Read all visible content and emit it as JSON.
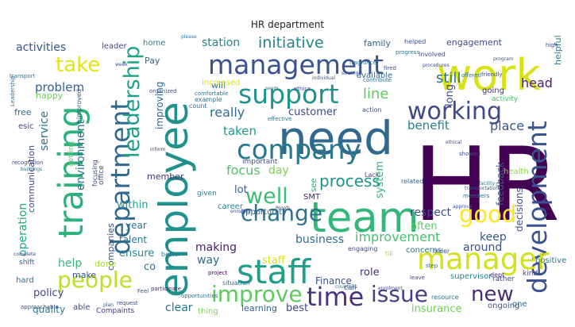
{
  "title": "HR department",
  "words": [
    {
      "text": "HR",
      "color": "#440154"
    },
    {
      "text": "employee",
      "color": "#21918c"
    },
    {
      "text": "need",
      "color": "#31688e"
    },
    {
      "text": "work",
      "color": "#d8e219"
    },
    {
      "text": "team",
      "color": "#35b779"
    },
    {
      "text": "management",
      "color": "#3b528b"
    },
    {
      "text": "company",
      "color": "#2a788e"
    },
    {
      "text": "staff",
      "color": "#1f9e89"
    },
    {
      "text": "support",
      "color": "#21918c"
    },
    {
      "text": "working",
      "color": "#3e4a89"
    },
    {
      "text": "training",
      "color": "#2db27d"
    },
    {
      "text": "department",
      "color": "#31688e"
    },
    {
      "text": "development",
      "color": "#3b528b"
    },
    {
      "text": "manager",
      "color": "#d2e21b"
    },
    {
      "text": "time",
      "color": "#46327e"
    },
    {
      "text": "people",
      "color": "#bddf26"
    },
    {
      "text": "issue",
      "color": "#433e85"
    },
    {
      "text": "improve",
      "color": "#5ec962"
    },
    {
      "text": "change",
      "color": "#2c728e"
    },
    {
      "text": "well",
      "color": "#3dbc74"
    },
    {
      "text": "good",
      "color": "#fde725"
    },
    {
      "text": "new",
      "color": "#472c7a"
    },
    {
      "text": "take",
      "color": "#e2e418"
    },
    {
      "text": "leadership",
      "color": "#1fa187"
    },
    {
      "text": "process",
      "color": "#20928c"
    },
    {
      "text": "initiative",
      "color": "#26828e"
    },
    {
      "text": "line",
      "color": "#5ec962"
    },
    {
      "text": "still",
      "color": "#2d718e"
    },
    {
      "text": "head",
      "color": "#482173"
    },
    {
      "text": "benefit",
      "color": "#277f8e"
    },
    {
      "text": "place",
      "color": "#38598c"
    },
    {
      "text": "really",
      "color": "#2f6c8e"
    },
    {
      "text": "customer",
      "color": "#3e4989"
    },
    {
      "text": "activities",
      "color": "#39568c"
    },
    {
      "text": "station",
      "color": "#25848e"
    },
    {
      "text": "environment",
      "color": "#2d708e"
    },
    {
      "text": "problem",
      "color": "#365c8d"
    },
    {
      "text": "improving",
      "color": "#33638d"
    },
    {
      "text": "service",
      "color": "#2a768e"
    },
    {
      "text": "operation",
      "color": "#22a785"
    },
    {
      "text": "communication",
      "color": "#3f4788"
    },
    {
      "text": "policy",
      "color": "#404688"
    },
    {
      "text": "quality",
      "color": "#297b8e"
    },
    {
      "text": "help",
      "color": "#35b779"
    },
    {
      "text": "focus",
      "color": "#52c569"
    },
    {
      "text": "day",
      "color": "#7ad151"
    },
    {
      "text": "lot",
      "color": "#365d8d"
    },
    {
      "text": "taken",
      "color": "#1f9a8a"
    },
    {
      "text": "improvement",
      "color": "#46c06f"
    },
    {
      "text": "respect",
      "color": "#3d4d8a"
    },
    {
      "text": "keep",
      "color": "#38588c"
    },
    {
      "text": "around",
      "color": "#3b528b"
    },
    {
      "text": "often",
      "color": "#5ec962"
    },
    {
      "text": "business",
      "color": "#2e6f8e"
    },
    {
      "text": "making",
      "color": "#481f70"
    },
    {
      "text": "way",
      "color": "#2f6b8e"
    },
    {
      "text": "role",
      "color": "#472d7b"
    },
    {
      "text": "Finance",
      "color": "#3b528b"
    },
    {
      "text": "insurance",
      "color": "#70cf57"
    },
    {
      "text": "learning",
      "color": "#33638d"
    },
    {
      "text": "best",
      "color": "#3e4a89"
    },
    {
      "text": "clear",
      "color": "#2c728e"
    },
    {
      "text": "thing",
      "color": "#7ad151"
    },
    {
      "text": "ensure",
      "color": "#24868e"
    },
    {
      "text": "year",
      "color": "#2a788e"
    },
    {
      "text": "talent",
      "color": "#2a778e"
    },
    {
      "text": "within",
      "color": "#1f9a8a"
    },
    {
      "text": "member",
      "color": "#46327e"
    },
    {
      "text": "SMT",
      "color": "#482475"
    },
    {
      "text": "see",
      "color": "#1fa188"
    },
    {
      "text": "system",
      "color": "#2fb47c"
    },
    {
      "text": "feedback",
      "color": "#355f8d"
    },
    {
      "text": "decisions",
      "color": "#3b528b"
    },
    {
      "text": "family",
      "color": "#33638d"
    },
    {
      "text": "engagement",
      "color": "#3e4989"
    },
    {
      "text": "home",
      "color": "#2a788e"
    },
    {
      "text": "leader",
      "color": "#404588"
    },
    {
      "text": "Pay",
      "color": "#31688e"
    },
    {
      "text": "free",
      "color": "#2d708e"
    },
    {
      "text": "esic",
      "color": "#3f4889"
    },
    {
      "text": "happy",
      "color": "#6ccd5a"
    },
    {
      "text": "long",
      "color": "#3b528b"
    },
    {
      "text": "going",
      "color": "#46337f"
    },
    {
      "text": "available",
      "color": "#31688e"
    },
    {
      "text": "activity",
      "color": "#46c06f"
    },
    {
      "text": "will",
      "color": "#2c738e"
    },
    {
      "text": "increased",
      "color": "#d8e219"
    },
    {
      "text": "companies",
      "color": "#3b528b"
    },
    {
      "text": "co",
      "color": "#2c728e"
    },
    {
      "text": "done",
      "color": "#addc30"
    },
    {
      "text": "make",
      "color": "#39568c"
    },
    {
      "text": "hard",
      "color": "#2b748e"
    },
    {
      "text": "able",
      "color": "#3e4989"
    },
    {
      "text": "Compaints",
      "color": "#463480"
    },
    {
      "text": "given",
      "color": "#2a768e"
    },
    {
      "text": "important",
      "color": "#3b528b"
    },
    {
      "text": "opportunity",
      "color": "#355f8d"
    },
    {
      "text": "career",
      "color": "#24868e"
    },
    {
      "text": "concerns",
      "color": "#2d708e"
    },
    {
      "text": "health",
      "color": "#86d549"
    },
    {
      "text": "supervisor",
      "color": "#26828e"
    },
    {
      "text": "ongoing",
      "color": "#3b528b"
    },
    {
      "text": "one",
      "color": "#31688e"
    },
    {
      "text": "helpful",
      "color": "#287d8e"
    },
    {
      "text": "rather",
      "color": "#3e4989"
    },
    {
      "text": "positive",
      "color": "#2c738e"
    },
    {
      "text": "kind",
      "color": "#3f4788"
    },
    {
      "text": "Lack",
      "color": "#433e85"
    },
    {
      "text": "related",
      "color": "#33638d"
    },
    {
      "text": "better",
      "color": "#2a788e"
    },
    {
      "text": "count",
      "color": "#31688e"
    },
    {
      "text": "example",
      "color": "#2c728e"
    },
    {
      "text": "office",
      "color": "#3b528b"
    },
    {
      "text": "focusing",
      "color": "#3e4a89"
    },
    {
      "text": "situation",
      "color": "#2d708e"
    },
    {
      "text": "project",
      "color": "#440154"
    },
    {
      "text": "shift",
      "color": "#355f8d"
    },
    {
      "text": "getting",
      "color": "#5ec962"
    },
    {
      "text": "improved",
      "color": "#3b528b"
    },
    {
      "text": "Leadership",
      "color": "#31688e"
    },
    {
      "text": "organized",
      "color": "#3b528b"
    },
    {
      "text": "dept",
      "color": "#482878"
    },
    {
      "text": "transport",
      "color": "#2c728e"
    },
    {
      "text": "recognition",
      "color": "#3e4989"
    },
    {
      "text": "buildings",
      "color": "#2d708e"
    },
    {
      "text": "action",
      "color": "#3b528b"
    },
    {
      "text": "effective",
      "color": "#2c728e"
    },
    {
      "text": "staff",
      "color": "#d8e219"
    },
    {
      "text": "call",
      "color": "#3e4989"
    },
    {
      "text": "till",
      "color": "#addc30"
    },
    {
      "text": "engaging",
      "color": "#3e4989"
    },
    {
      "text": "order",
      "color": "#3b528b"
    },
    {
      "text": "step",
      "color": "#2c728e"
    },
    {
      "text": "request",
      "color": "#3e4989"
    },
    {
      "text": "approachable",
      "color": "#3b528b"
    },
    {
      "text": "participate",
      "color": "#481f70"
    },
    {
      "text": "friendly",
      "color": "#3e4989"
    },
    {
      "text": "program",
      "color": "#3b528b"
    },
    {
      "text": "resource",
      "color": "#2c728e"
    },
    {
      "text": "leave",
      "color": "#3e4989"
    },
    {
      "text": "high",
      "color": "#3b528b"
    },
    {
      "text": "offered",
      "color": "#2c728e"
    },
    {
      "text": "involved",
      "color": "#3e4989"
    },
    {
      "text": "contribute",
      "color": "#2c728e"
    },
    {
      "text": "helped",
      "color": "#3b528b"
    },
    {
      "text": "procedures",
      "color": "#3e4989"
    },
    {
      "text": "progress",
      "color": "#2c728e"
    },
    {
      "text": "ethics",
      "color": "#3e4989"
    },
    {
      "text": "fragrance",
      "color": "#2c728e"
    },
    {
      "text": "fired",
      "color": "#3b528b"
    },
    {
      "text": "showed",
      "color": "#3e4989"
    },
    {
      "text": "comfortable",
      "color": "#2c728e"
    },
    {
      "text": "strategic",
      "color": "#3b528b"
    },
    {
      "text": "ethical",
      "color": "#3e4989"
    },
    {
      "text": "opportunities",
      "color": "#2c728e"
    },
    {
      "text": "individual",
      "color": "#3b528b"
    },
    {
      "text": "week",
      "color": "#3e4989"
    },
    {
      "text": "seem",
      "color": "#2c728e"
    },
    {
      "text": "enrolled",
      "color": "#3b528b"
    },
    {
      "text": "Proofs",
      "color": "#3e4989"
    },
    {
      "text": "please",
      "color": "#2c728e"
    },
    {
      "text": "Feel",
      "color": "#3b528b"
    },
    {
      "text": "enrolment",
      "color": "#3e4989"
    },
    {
      "text": "countries",
      "color": "#2c728e"
    },
    {
      "text": "transportation",
      "color": "#3b528b"
    },
    {
      "text": "complete",
      "color": "#3e4989"
    },
    {
      "text": "members",
      "color": "#2c728e"
    },
    {
      "text": "approve",
      "color": "#3b528b"
    },
    {
      "text": "inform",
      "color": "#3e4989"
    },
    {
      "text": "facility",
      "color": "#2c728e"
    },
    {
      "text": "plan",
      "color": "#3b528b"
    },
    {
      "text": "personal",
      "color": "#3e4989"
    }
  ]
}
